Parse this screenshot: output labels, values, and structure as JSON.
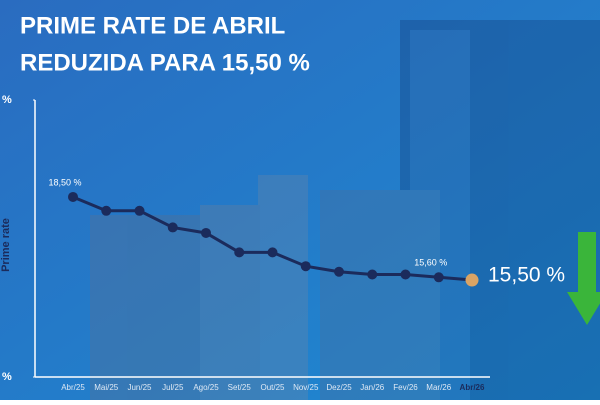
{
  "chart_data": {
    "type": "line",
    "title": [
      "PRIME RATE DE ABRIL",
      "REDUZIDA PARA 15,50 %"
    ],
    "y_label": "Prime rate",
    "categories": [
      "Abr/25",
      "Mai/25",
      "Jun/25",
      "Jul/25",
      "Ago/25",
      "Set/25",
      "Out/25",
      "Nov/25",
      "Dez/25",
      "Jan/26",
      "Fev/26",
      "Mar/26",
      "Abr/26"
    ],
    "values": [
      18.5,
      18.0,
      18.0,
      17.4,
      17.2,
      16.5,
      16.5,
      16.0,
      15.8,
      15.7,
      15.7,
      15.6,
      15.5
    ],
    "value_labels": [
      "18,50 %",
      null,
      null,
      null,
      null,
      null,
      null,
      null,
      null,
      null,
      null,
      "15,60 %",
      "15,50 %"
    ],
    "color": "#1b2b5c",
    "highlight_color": "#d9a465",
    "ylim": [
      12,
      22
    ],
    "yticks": [
      {
        "value": 22,
        "label": "%"
      },
      {
        "value": 12,
        "label": "%"
      }
    ]
  }
}
